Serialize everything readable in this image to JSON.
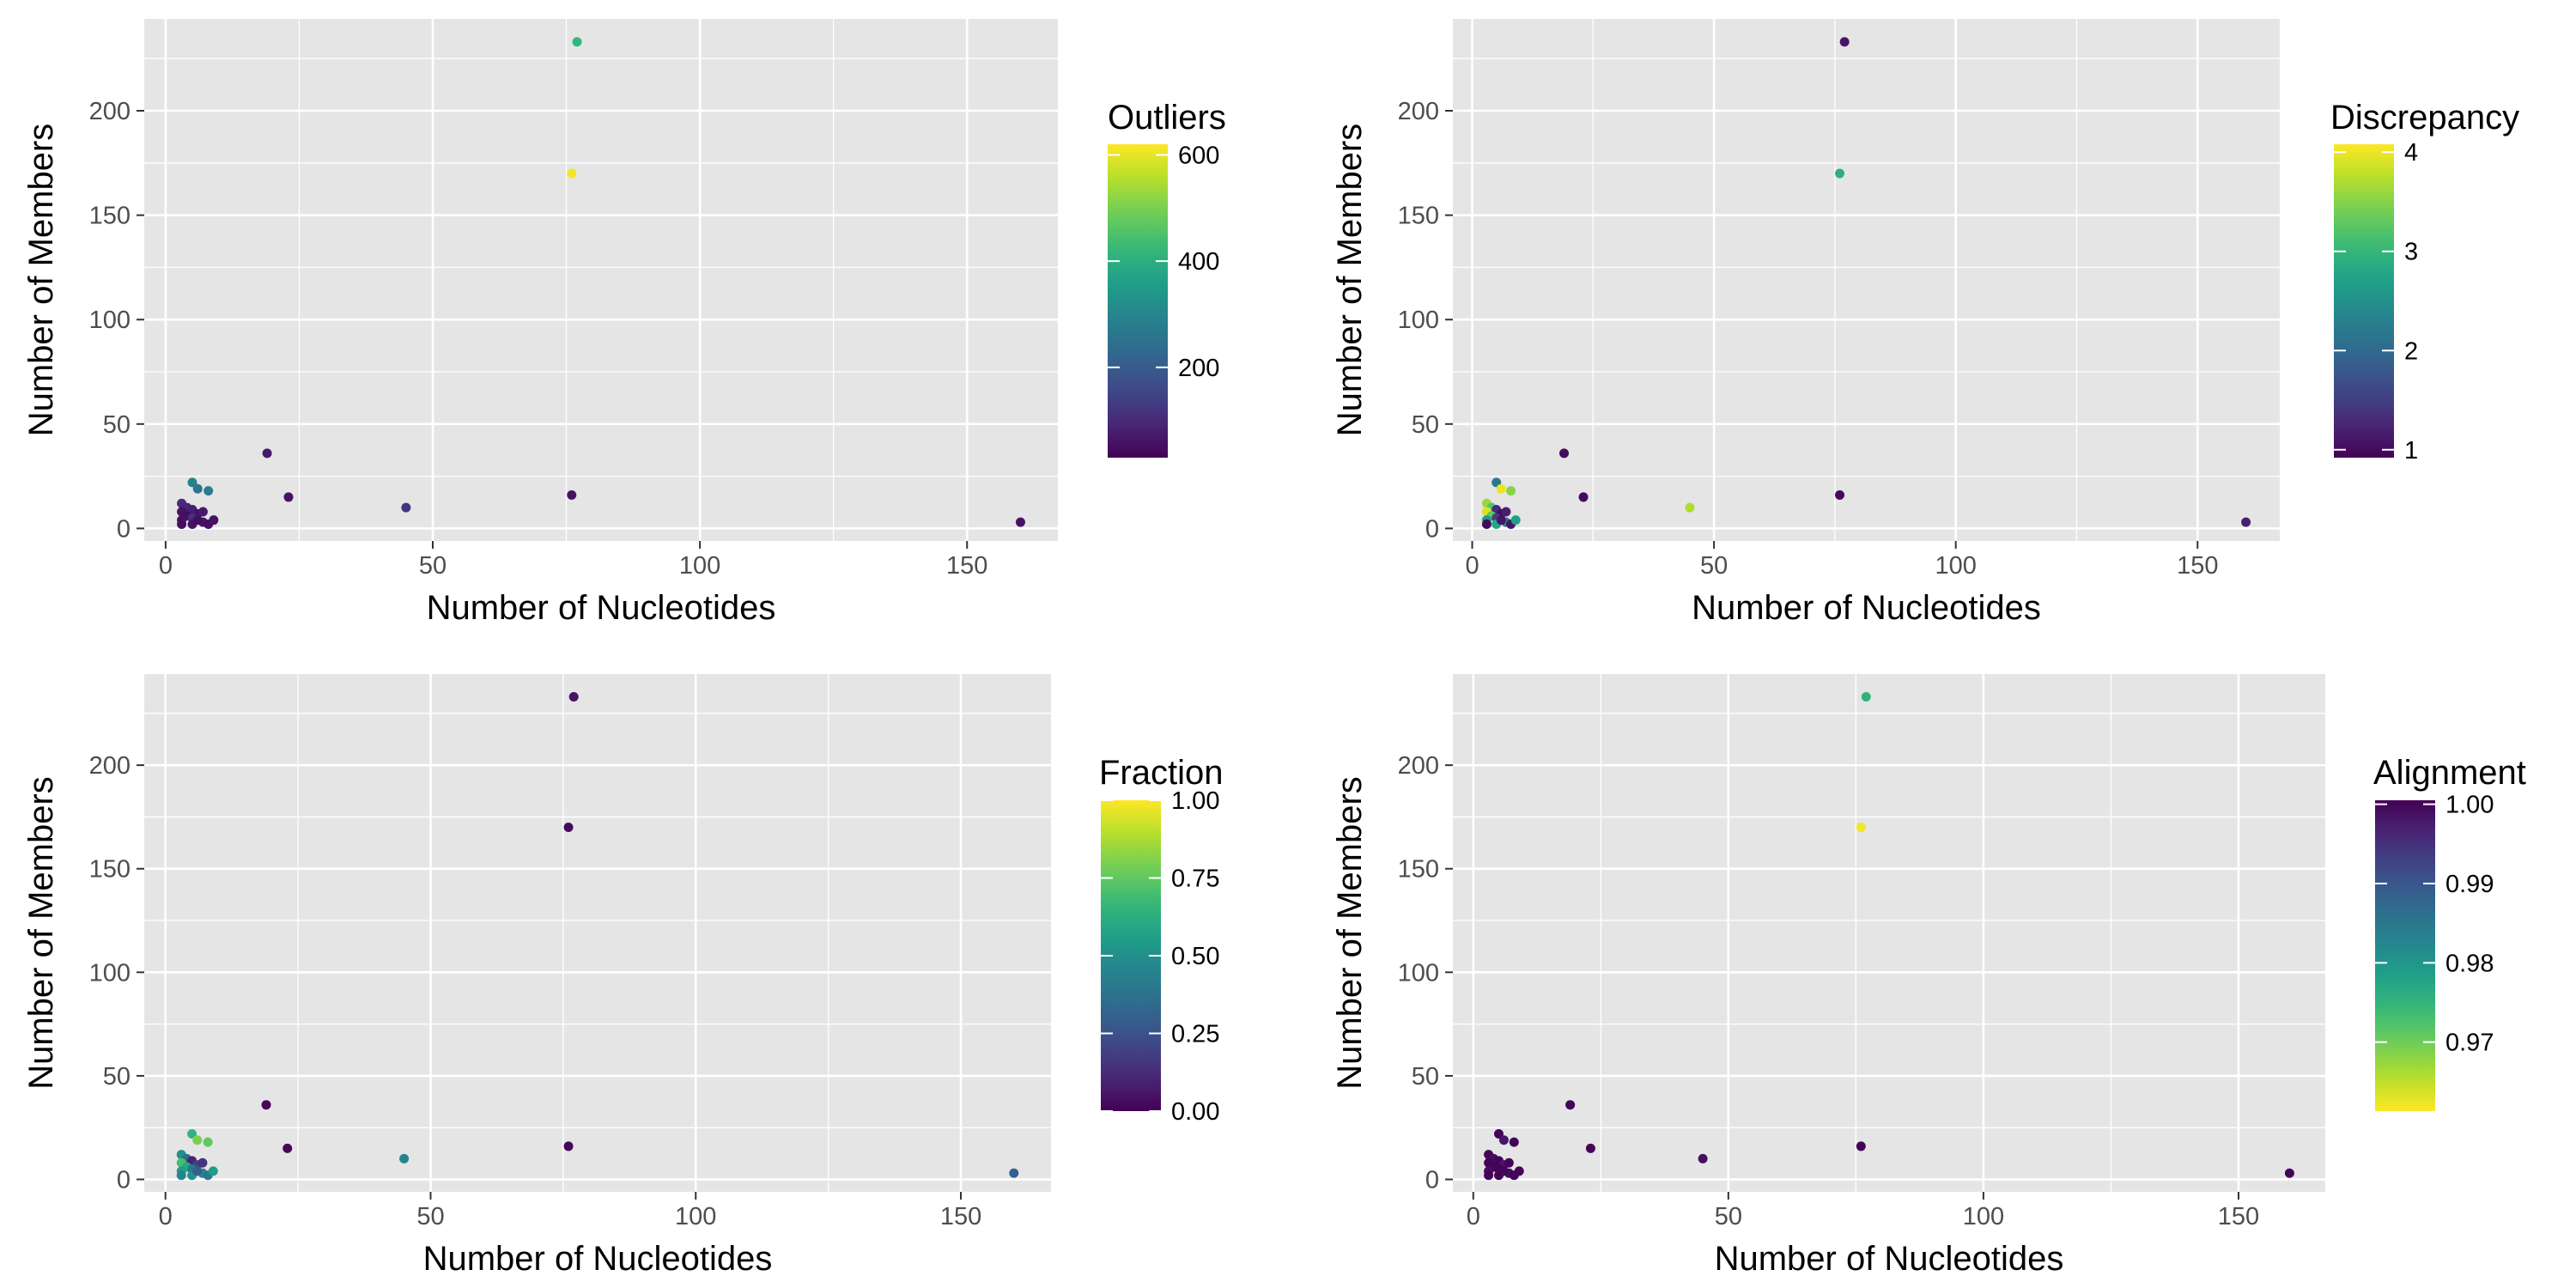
{
  "palette": {
    "panel_background": "#E5E5E5",
    "grid_color": "#FFFFFF",
    "text_color": "#000000",
    "tick_label_color": "#4D4D4D",
    "viridis_stops": [
      "#440154",
      "#482878",
      "#3E4A89",
      "#31688E",
      "#26828E",
      "#1F9E89",
      "#35B779",
      "#6DCD59",
      "#B4DE2C",
      "#FDE725"
    ]
  },
  "chart_data": [
    {
      "type": "scatter",
      "title": "",
      "xlabel": "Number of Nucleotides",
      "ylabel": "Number of Members",
      "xlim": [
        -4,
        167
      ],
      "ylim": [
        -6,
        244
      ],
      "xticks": [
        0,
        50,
        100,
        150
      ],
      "yticks": [
        0,
        50,
        100,
        150,
        200
      ],
      "grid": true,
      "legend": {
        "title": "Outliers",
        "placement": "right",
        "domain": [
          30,
          620
        ],
        "ticks": [
          200,
          400,
          600
        ],
        "tick_labels": [
          "200",
          "400",
          "600"
        ],
        "reversed": false
      },
      "points": [
        {
          "x": 77,
          "y": 233,
          "c": 420
        },
        {
          "x": 76,
          "y": 170,
          "c": 610
        },
        {
          "x": 19,
          "y": 36,
          "c": 70
        },
        {
          "x": 5,
          "y": 22,
          "c": 290
        },
        {
          "x": 6,
          "y": 19,
          "c": 260
        },
        {
          "x": 8,
          "y": 18,
          "c": 280
        },
        {
          "x": 23,
          "y": 15,
          "c": 60
        },
        {
          "x": 76,
          "y": 16,
          "c": 60
        },
        {
          "x": 45,
          "y": 10,
          "c": 120
        },
        {
          "x": 160,
          "y": 3,
          "c": 60
        },
        {
          "x": 3,
          "y": 12,
          "c": 100
        },
        {
          "x": 4,
          "y": 10,
          "c": 90
        },
        {
          "x": 3,
          "y": 8,
          "c": 60
        },
        {
          "x": 5,
          "y": 9,
          "c": 80
        },
        {
          "x": 6,
          "y": 7,
          "c": 60
        },
        {
          "x": 7,
          "y": 8,
          "c": 70
        },
        {
          "x": 4,
          "y": 6,
          "c": 50
        },
        {
          "x": 3,
          "y": 4,
          "c": 60
        },
        {
          "x": 5,
          "y": 5,
          "c": 110
        },
        {
          "x": 3,
          "y": 2,
          "c": 50
        },
        {
          "x": 5,
          "y": 2,
          "c": 60
        },
        {
          "x": 7,
          "y": 3,
          "c": 60
        },
        {
          "x": 8,
          "y": 2,
          "c": 50
        },
        {
          "x": 9,
          "y": 4,
          "c": 60
        },
        {
          "x": 6,
          "y": 4,
          "c": 50
        }
      ]
    },
    {
      "type": "scatter",
      "title": "",
      "xlabel": "Number of Nucleotides",
      "ylabel": "Number of Members",
      "xlim": [
        -4,
        167
      ],
      "ylim": [
        -6,
        244
      ],
      "xticks": [
        0,
        50,
        100,
        150
      ],
      "yticks": [
        0,
        50,
        100,
        150,
        200
      ],
      "grid": true,
      "legend": {
        "title": "Discrepancy",
        "placement": "right",
        "domain": [
          0.92,
          4.08
        ],
        "ticks": [
          1,
          2,
          3,
          4
        ],
        "tick_labels": [
          "1",
          "2",
          "3",
          "4"
        ],
        "reversed": false
      },
      "points": [
        {
          "x": 77,
          "y": 233,
          "c": 1.1
        },
        {
          "x": 76,
          "y": 170,
          "c": 2.9
        },
        {
          "x": 19,
          "y": 36,
          "c": 1.0
        },
        {
          "x": 5,
          "y": 22,
          "c": 2.2
        },
        {
          "x": 6,
          "y": 19,
          "c": 4.0
        },
        {
          "x": 8,
          "y": 18,
          "c": 3.5
        },
        {
          "x": 23,
          "y": 15,
          "c": 1.0
        },
        {
          "x": 76,
          "y": 16,
          "c": 1.0
        },
        {
          "x": 45,
          "y": 10,
          "c": 3.7
        },
        {
          "x": 160,
          "y": 3,
          "c": 1.2
        },
        {
          "x": 3,
          "y": 12,
          "c": 3.6
        },
        {
          "x": 4,
          "y": 10,
          "c": 3.2
        },
        {
          "x": 3,
          "y": 8,
          "c": 3.9
        },
        {
          "x": 5,
          "y": 9,
          "c": 1.3
        },
        {
          "x": 6,
          "y": 7,
          "c": 1.0
        },
        {
          "x": 7,
          "y": 8,
          "c": 1.2
        },
        {
          "x": 4,
          "y": 6,
          "c": 3.3
        },
        {
          "x": 3,
          "y": 4,
          "c": 2.6
        },
        {
          "x": 5,
          "y": 5,
          "c": 1.5
        },
        {
          "x": 3,
          "y": 2,
          "c": 1.0
        },
        {
          "x": 5,
          "y": 2,
          "c": 2.8
        },
        {
          "x": 7,
          "y": 3,
          "c": 2.2
        },
        {
          "x": 8,
          "y": 2,
          "c": 1.1
        },
        {
          "x": 9,
          "y": 4,
          "c": 2.7
        },
        {
          "x": 6,
          "y": 4,
          "c": 1.1
        }
      ]
    },
    {
      "type": "scatter",
      "title": "",
      "xlabel": "Number of Nucleotides",
      "ylabel": "Number of Members",
      "xlim": [
        -4,
        167
      ],
      "ylim": [
        -6,
        244
      ],
      "xticks": [
        0,
        50,
        100,
        150
      ],
      "yticks": [
        0,
        50,
        100,
        150,
        200
      ],
      "grid": true,
      "legend": {
        "title": "Fraction",
        "placement": "right",
        "domain": [
          0,
          1
        ],
        "ticks": [
          0,
          0.25,
          0.5,
          0.75,
          1
        ],
        "tick_labels": [
          "0.00",
          "0.25",
          "0.50",
          "0.75",
          "1.00"
        ],
        "reversed": false
      },
      "points": [
        {
          "x": 77,
          "y": 233,
          "c": 0.05
        },
        {
          "x": 76,
          "y": 170,
          "c": 0.03
        },
        {
          "x": 19,
          "y": 36,
          "c": 0.02
        },
        {
          "x": 5,
          "y": 22,
          "c": 0.65
        },
        {
          "x": 6,
          "y": 19,
          "c": 0.8
        },
        {
          "x": 8,
          "y": 18,
          "c": 0.75
        },
        {
          "x": 23,
          "y": 15,
          "c": 0.02
        },
        {
          "x": 76,
          "y": 16,
          "c": 0.02
        },
        {
          "x": 45,
          "y": 10,
          "c": 0.45
        },
        {
          "x": 160,
          "y": 3,
          "c": 0.3
        },
        {
          "x": 3,
          "y": 12,
          "c": 0.5
        },
        {
          "x": 4,
          "y": 10,
          "c": 0.35
        },
        {
          "x": 3,
          "y": 8,
          "c": 0.7
        },
        {
          "x": 5,
          "y": 9,
          "c": 0.1
        },
        {
          "x": 6,
          "y": 7,
          "c": 0.2
        },
        {
          "x": 7,
          "y": 8,
          "c": 0.15
        },
        {
          "x": 4,
          "y": 6,
          "c": 0.6
        },
        {
          "x": 3,
          "y": 4,
          "c": 0.55
        },
        {
          "x": 5,
          "y": 5,
          "c": 0.4
        },
        {
          "x": 3,
          "y": 2,
          "c": 0.45
        },
        {
          "x": 5,
          "y": 2,
          "c": 0.5
        },
        {
          "x": 7,
          "y": 3,
          "c": 0.45
        },
        {
          "x": 8,
          "y": 2,
          "c": 0.4
        },
        {
          "x": 9,
          "y": 4,
          "c": 0.55
        },
        {
          "x": 6,
          "y": 4,
          "c": 0.3
        }
      ]
    },
    {
      "type": "scatter",
      "title": "",
      "xlabel": "Number of Nucleotides",
      "ylabel": "Number of Members",
      "xlim": [
        -4,
        167
      ],
      "ylim": [
        -6,
        244
      ],
      "xticks": [
        0,
        50,
        100,
        150
      ],
      "yticks": [
        0,
        50,
        100,
        150,
        200
      ],
      "grid": true,
      "legend": {
        "title": "Alignment",
        "placement": "right",
        "domain": [
          0.9613,
          1.0005
        ],
        "ticks": [
          1.0,
          0.99,
          0.98,
          0.97
        ],
        "tick_labels": [
          "1.00",
          "0.99",
          "0.98",
          "0.97"
        ],
        "reversed": true
      },
      "points": [
        {
          "x": 77,
          "y": 233,
          "c": 0.975
        },
        {
          "x": 76,
          "y": 170,
          "c": 0.962
        },
        {
          "x": 19,
          "y": 36,
          "c": 1.0
        },
        {
          "x": 5,
          "y": 22,
          "c": 1.0
        },
        {
          "x": 6,
          "y": 19,
          "c": 0.998
        },
        {
          "x": 8,
          "y": 18,
          "c": 1.0
        },
        {
          "x": 23,
          "y": 15,
          "c": 1.0
        },
        {
          "x": 76,
          "y": 16,
          "c": 1.0
        },
        {
          "x": 45,
          "y": 10,
          "c": 0.999
        },
        {
          "x": 160,
          "y": 3,
          "c": 1.0
        },
        {
          "x": 3,
          "y": 12,
          "c": 1.0
        },
        {
          "x": 4,
          "y": 10,
          "c": 0.999
        },
        {
          "x": 3,
          "y": 8,
          "c": 1.0
        },
        {
          "x": 5,
          "y": 9,
          "c": 1.0
        },
        {
          "x": 6,
          "y": 7,
          "c": 0.998
        },
        {
          "x": 7,
          "y": 8,
          "c": 1.0
        },
        {
          "x": 4,
          "y": 6,
          "c": 1.0
        },
        {
          "x": 3,
          "y": 4,
          "c": 0.999
        },
        {
          "x": 5,
          "y": 5,
          "c": 1.0
        },
        {
          "x": 3,
          "y": 2,
          "c": 1.0
        },
        {
          "x": 5,
          "y": 2,
          "c": 1.0
        },
        {
          "x": 7,
          "y": 3,
          "c": 0.999
        },
        {
          "x": 8,
          "y": 2,
          "c": 1.0
        },
        {
          "x": 9,
          "y": 4,
          "c": 1.0
        },
        {
          "x": 6,
          "y": 4,
          "c": 1.0
        }
      ]
    }
  ]
}
